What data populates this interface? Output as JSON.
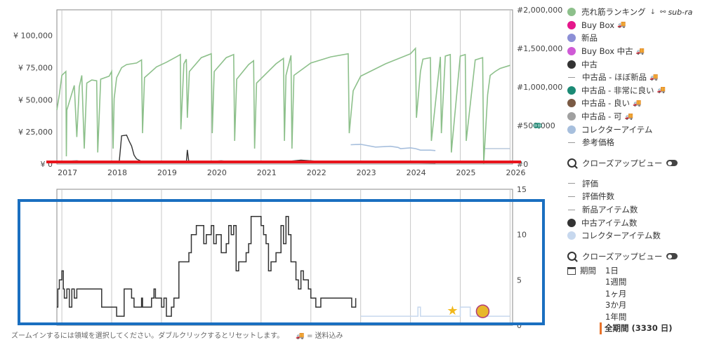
{
  "chart_data": [
    {
      "type": "line",
      "title": "",
      "xlabel": "",
      "ylabel": "",
      "x_ticks": [
        "2017",
        "2018",
        "2019",
        "2020",
        "2021",
        "2022",
        "2023",
        "2024",
        "2025",
        "2026"
      ],
      "xlim": [
        2016.9,
        2026.05
      ],
      "y_left_ticks": [
        "¥ 0",
        "¥ 25,000",
        "¥ 50,000",
        "¥ 75,000",
        "¥ 100,000"
      ],
      "y_left_range": [
        0,
        120000
      ],
      "y_right_ticks": [
        "#0",
        "#500,000",
        "#1,000,000",
        "#1,500,000",
        "#2,000,000"
      ],
      "y_right_range": [
        0,
        2000000
      ],
      "series": [
        {
          "name": "売れ筋ランキング",
          "axis": "right",
          "color": "#8dc08b",
          "x": [
            2016.9,
            2016.95,
            2017.0,
            2017.08,
            2017.09,
            2017.1,
            2017.25,
            2017.3,
            2017.35,
            2017.4,
            2017.45,
            2017.5,
            2017.6,
            2017.7,
            2017.72,
            2017.78,
            2017.95,
            2018.0,
            2018.03,
            2018.05,
            2018.1,
            2018.2,
            2018.3,
            2018.5,
            2018.6,
            2018.62,
            2018.66,
            2018.9,
            2019.1,
            2019.3,
            2019.38,
            2019.39,
            2019.45,
            2019.5,
            2019.52,
            2019.56,
            2019.8,
            2020.0,
            2020.02,
            2020.06,
            2020.3,
            2020.45,
            2020.47,
            2020.51,
            2020.75,
            2020.85,
            2020.87,
            2020.91,
            2021.3,
            2021.45,
            2021.47,
            2021.5,
            2021.6,
            2021.62,
            2021.66,
            2022.0,
            2022.2,
            2022.4,
            2022.75,
            2022.77,
            2022.85,
            2023.0,
            2023.5,
            2024.0,
            2024.1,
            2024.12,
            2024.2,
            2024.25,
            2024.4,
            2024.42,
            2024.6,
            2024.62,
            2024.7,
            2024.8,
            2024.82,
            2025.0,
            2025.1,
            2025.12,
            2025.3,
            2025.45,
            2025.47,
            2025.55,
            2025.6,
            2025.7,
            2025.8,
            2026.0
          ],
          "values": [
            700000,
            900000,
            1150000,
            1200000,
            100000,
            700000,
            1020000,
            350000,
            1000000,
            1150000,
            200000,
            1050000,
            1090000,
            1080000,
            150000,
            1100000,
            1140000,
            1200000,
            200000,
            850000,
            1120000,
            1250000,
            1290000,
            1310000,
            1350000,
            400000,
            1120000,
            1260000,
            1320000,
            1390000,
            1420000,
            450000,
            1300000,
            1360000,
            600000,
            1200000,
            1380000,
            1430000,
            400000,
            1200000,
            1380000,
            1420000,
            300000,
            1100000,
            1290000,
            1340000,
            200000,
            1050000,
            1300000,
            1370000,
            300000,
            1150000,
            1410000,
            200000,
            1150000,
            1310000,
            1350000,
            1390000,
            1430000,
            400000,
            950000,
            1140000,
            1300000,
            1430000,
            1500000,
            600000,
            1200000,
            1360000,
            1380000,
            300000,
            1390000,
            400000,
            1400000,
            1420000,
            150000,
            1400000,
            1420000,
            300000,
            1350000,
            1380000,
            0,
            900000,
            1150000,
            1200000,
            1240000,
            1280000
          ]
        },
        {
          "name": "中古",
          "axis": "left",
          "color": "#333333",
          "x": [
            2016.9,
            2017.3,
            2017.6,
            2017.8,
            2018.15,
            2018.2,
            2018.3,
            2018.35,
            2018.4,
            2018.45,
            2018.5,
            2018.6,
            2019.0,
            2019.4,
            2019.5,
            2019.52,
            2019.55,
            2019.8,
            2020.2,
            2020.6,
            2020.9,
            2021.3,
            2021.8,
            2022.2,
            2022.7,
            2023.1,
            2024.0,
            2024.5
          ],
          "values": [
            2000,
            2500,
            1500,
            1800,
            1000,
            22000,
            22500,
            18000,
            14000,
            7000,
            4000,
            2000,
            1800,
            1500,
            1200,
            11000,
            1500,
            1800,
            2500,
            1500,
            2000,
            1200,
            3000,
            2000,
            1500,
            2000,
            1000,
            800
          ]
        },
        {
          "name": "コレクターアイテム",
          "axis": "right",
          "color": "#a7bfdd",
          "x": [
            2022.8,
            2023.0,
            2023.3,
            2023.6,
            2023.75,
            2023.8,
            2024.0,
            2024.1,
            2024.2,
            2024.4,
            2024.5
          ],
          "values": [
            250000,
            255000,
            220000,
            230000,
            215000,
            200000,
            210000,
            200000,
            180000,
            180000,
            175000
          ]
        },
        {
          "name": "参考価格",
          "axis": "right",
          "color": "#b8c8dc",
          "x": [
            2025.5,
            2026.0
          ],
          "values": [
            200000,
            200000
          ]
        }
      ]
    },
    {
      "type": "line",
      "title": "",
      "xlim": [
        2016.9,
        2026.05
      ],
      "y_right_ticks": [
        "0",
        "5",
        "10",
        "15"
      ],
      "ylim": [
        0,
        15
      ],
      "series": [
        {
          "name": "中古アイテム数",
          "color": "#333333",
          "step": true,
          "x": [
            2016.9,
            2016.92,
            2016.95,
            2017.0,
            2017.03,
            2017.05,
            2017.1,
            2017.15,
            2017.2,
            2017.25,
            2017.3,
            2017.32,
            2017.45,
            2017.8,
            2017.95,
            2018.1,
            2018.25,
            2018.4,
            2018.45,
            2018.6,
            2018.62,
            2018.8,
            2018.85,
            2018.88,
            2019.0,
            2019.05,
            2019.1,
            2019.2,
            2019.25,
            2019.35,
            2019.55,
            2019.6,
            2019.7,
            2019.85,
            2019.9,
            2020.0,
            2020.05,
            2020.1,
            2020.2,
            2020.3,
            2020.35,
            2020.4,
            2020.45,
            2020.5,
            2020.55,
            2020.7,
            2020.75,
            2020.8,
            2021.0,
            2021.05,
            2021.1,
            2021.15,
            2021.2,
            2021.3,
            2021.4,
            2021.45,
            2021.5,
            2021.55,
            2021.6,
            2021.7,
            2021.75,
            2021.8,
            2021.85,
            2021.95,
            2022.0,
            2022.1,
            2022.2,
            2022.8,
            2022.82,
            2022.9
          ],
          "values": [
            2,
            4,
            5,
            6,
            4,
            3,
            4,
            2,
            4,
            3,
            4,
            4,
            4,
            2,
            2,
            1,
            4,
            3,
            2,
            3,
            2,
            3,
            4,
            3,
            2,
            3,
            1,
            2,
            3,
            7,
            8,
            10,
            11,
            9,
            10,
            11,
            9,
            10,
            8,
            9,
            11,
            10,
            11,
            6,
            7,
            8,
            9,
            12,
            11,
            10,
            9,
            6,
            7,
            8,
            11,
            9,
            12,
            10,
            7,
            5,
            4,
            6,
            5,
            4,
            3,
            2,
            3,
            3,
            2,
            3
          ]
        },
        {
          "name": "コレクターアイテム数",
          "color": "#c7d8ee",
          "step": true,
          "x": [
            2023.0,
            2023.5,
            2024.0,
            2024.15,
            2024.2,
            2024.6,
            2024.9,
            2025.0,
            2025.2,
            2025.6,
            2026.0
          ],
          "values": [
            1,
            1,
            1,
            2,
            1,
            1,
            1,
            2,
            1,
            1,
            1
          ]
        }
      ]
    }
  ],
  "legend": [
    {
      "label": "売れ筋ランキング",
      "color": "#8dc08b",
      "marker": "dot",
      "extra": "sub-ra"
    },
    {
      "label": "Buy Box",
      "color": "#e5178b",
      "marker": "dot",
      "ship": true
    },
    {
      "label": "新品",
      "color": "#8c8fd6",
      "marker": "dot"
    },
    {
      "label": "Buy Box 中古",
      "color": "#cf5ad6",
      "marker": "dot",
      "ship": true
    },
    {
      "label": "中古",
      "color": "#333333",
      "marker": "dot"
    },
    {
      "label": "中古品 - ほぼ新品",
      "color": "#999999",
      "marker": "dash",
      "ship": true
    },
    {
      "label": "中古品 - 非常に良い",
      "color": "#1b8a75",
      "marker": "dot",
      "ship": true
    },
    {
      "label": "中古品 - 良い",
      "color": "#7a5a44",
      "marker": "dot",
      "ship": true
    },
    {
      "label": "中古品 - 可",
      "color": "#a0a0a0",
      "marker": "dot",
      "ship": true
    },
    {
      "label": "コレクターアイテム",
      "color": "#a7bfdd",
      "marker": "dot"
    },
    {
      "label": "参考価格",
      "color": "#999999",
      "marker": "dash"
    }
  ],
  "closeup_label": "クローズアップビュー",
  "legend2": [
    {
      "label": "評価",
      "color": "#999999",
      "marker": "dash"
    },
    {
      "label": "評価件数",
      "color": "#999999",
      "marker": "dash"
    },
    {
      "label": "新品アイテム数",
      "color": "#999999",
      "marker": "dash"
    },
    {
      "label": "中古アイテム数",
      "color": "#333333",
      "marker": "dot"
    },
    {
      "label": "コレクターアイテム数",
      "color": "#c7d8ee",
      "marker": "dot"
    }
  ],
  "period": {
    "label": "期間",
    "options": [
      "1日",
      "1週間",
      "1ヶ月",
      "3か月",
      "1年間",
      "全期間 (3330 日)"
    ],
    "selected_index": 5
  },
  "footer": {
    "hint": "ズームインするには領域を選択してください。ダブルクリックするとリセットします。",
    "ship_note": "= 送料込み"
  },
  "annotation_colors": {
    "red_line": "#e8141c",
    "blue_box": "#1a6fc0"
  }
}
